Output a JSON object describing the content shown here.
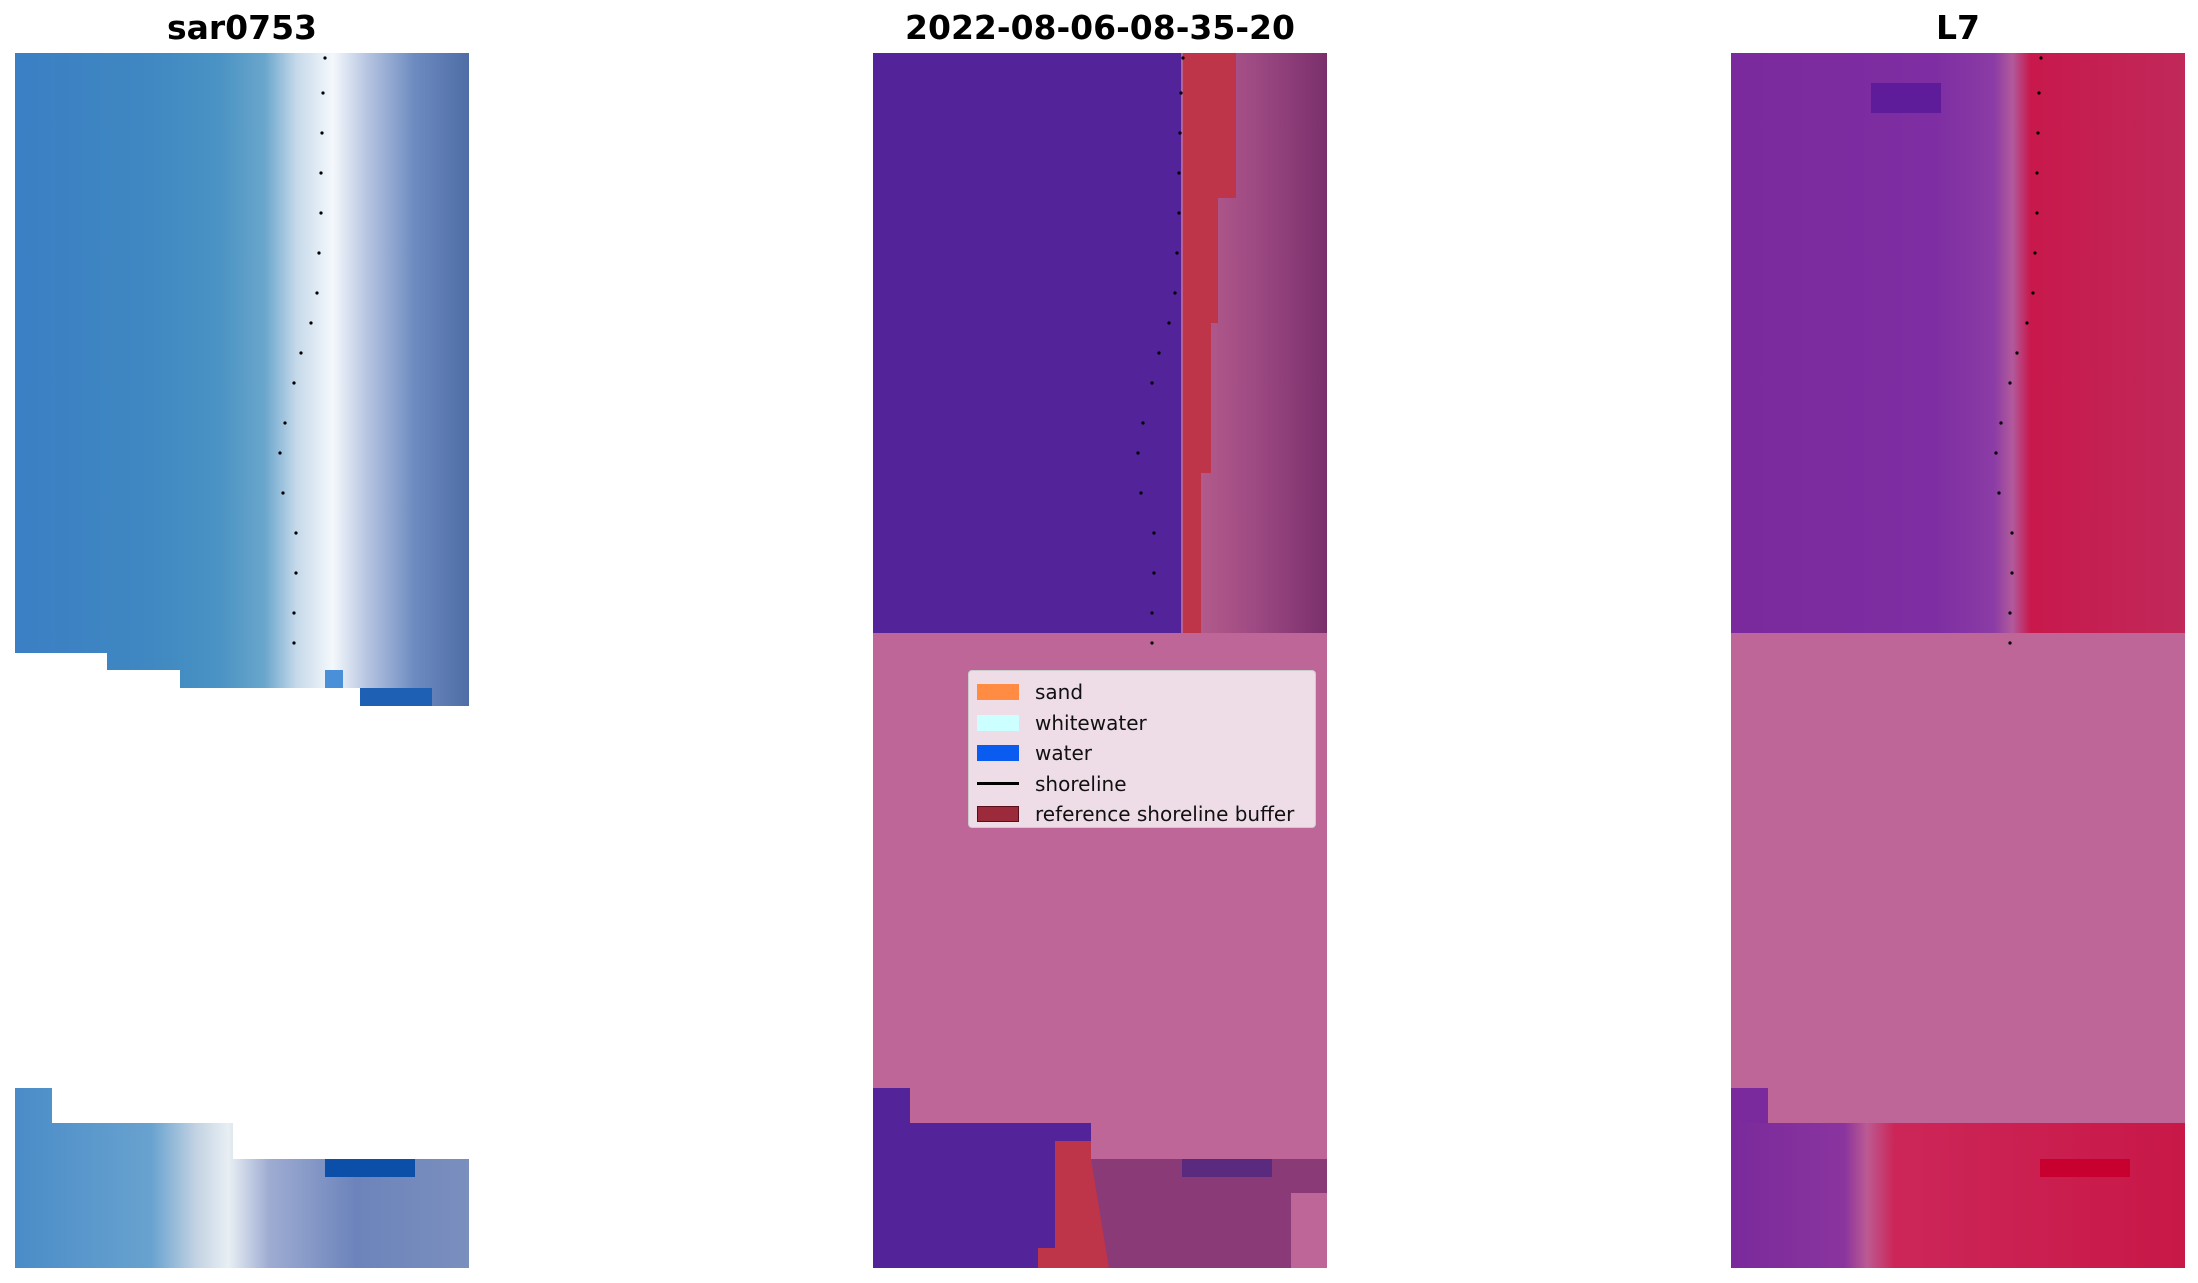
{
  "panels": [
    {
      "title": "sar0753"
    },
    {
      "title": "2022-08-06-08-35-20"
    },
    {
      "title": "L7"
    }
  ],
  "legend": {
    "items": [
      {
        "label": "sand",
        "color": "#ff8c42",
        "kind": "patch"
      },
      {
        "label": "whitewater",
        "color": "#ccffff",
        "kind": "patch"
      },
      {
        "label": "water",
        "color": "#0a5cf0",
        "kind": "patch"
      },
      {
        "label": "shoreline",
        "color": "#000000",
        "kind": "line"
      },
      {
        "label": "reference shoreline buffer",
        "color": "#9b2a3a",
        "kind": "patch"
      }
    ]
  },
  "colors": {
    "sea_blue": "#3f86c3",
    "whitewater_light": "#e8eff8",
    "dark_blue": "#0a4fa8",
    "class_purple": "#53239a",
    "mask_pink": "#bd6697",
    "buffer_red": "#be3448",
    "l7_purple": "#7a2a9c",
    "l7_crimson": "#c8184c"
  }
}
